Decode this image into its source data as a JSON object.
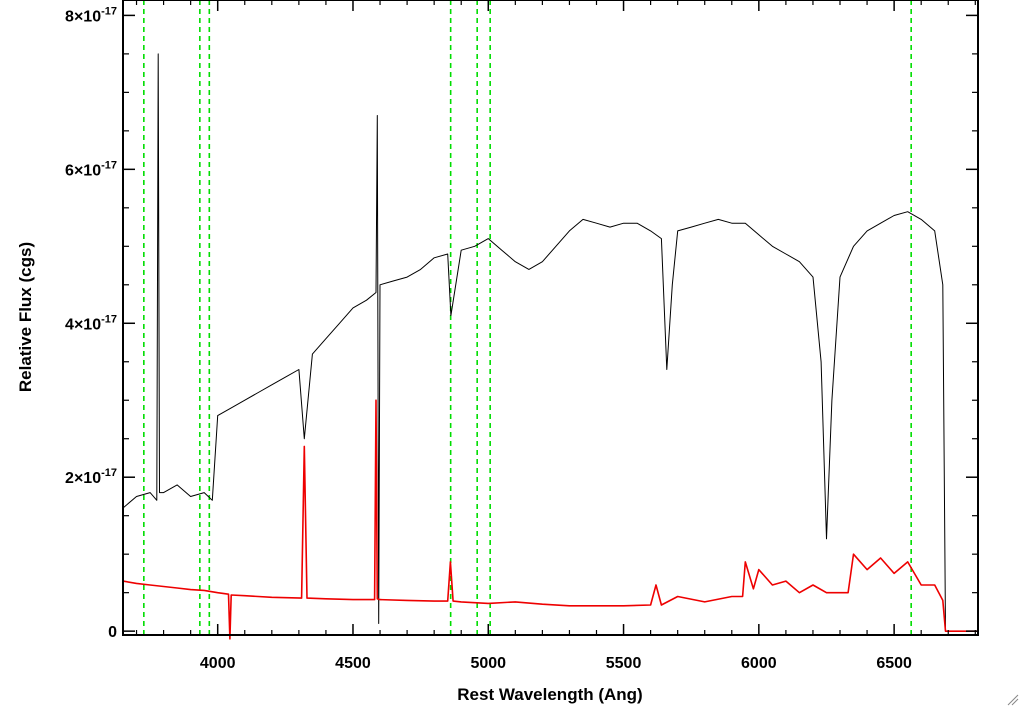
{
  "chart_data": {
    "type": "line",
    "title": "",
    "xlabel": "Rest Wavelength (Ang)",
    "ylabel": "Relative Flux (cgs)",
    "xlim": [
      3650,
      6810
    ],
    "ylim": [
      -5e-19,
      8.2e-17
    ],
    "x_ticks": [
      {
        "value": 4000,
        "label": "4000"
      },
      {
        "value": 4500,
        "label": "4500"
      },
      {
        "value": 5000,
        "label": "5000"
      },
      {
        "value": 5500,
        "label": "5500"
      },
      {
        "value": 6000,
        "label": "6000"
      },
      {
        "value": 6500,
        "label": "6500"
      }
    ],
    "y_ticks": [
      {
        "value": 0,
        "mant": "0",
        "exp": ""
      },
      {
        "value": 2e-17,
        "mant": "2×10",
        "exp": "-17"
      },
      {
        "value": 4e-17,
        "mant": "4×10",
        "exp": "-17"
      },
      {
        "value": 6e-17,
        "mant": "6×10",
        "exp": "-17"
      },
      {
        "value": 8e-17,
        "mant": "8×10",
        "exp": "-17"
      }
    ],
    "vlines": {
      "style": "dashed",
      "color": "#00dd00",
      "x": [
        3727,
        3934,
        3969,
        4861,
        4959,
        5007,
        6563
      ]
    },
    "series": [
      {
        "color": "#000000",
        "x": [
          3650,
          3700,
          3750,
          3775,
          3780,
          3785,
          3800,
          3850,
          3900,
          3950,
          3980,
          4000,
          4050,
          4100,
          4150,
          4200,
          4250,
          4300,
          4320,
          4350,
          4400,
          4450,
          4500,
          4550,
          4585,
          4590,
          4595,
          4600,
          4650,
          4700,
          4750,
          4800,
          4850,
          4862,
          4900,
          4950,
          5000,
          5050,
          5100,
          5150,
          5200,
          5250,
          5300,
          5350,
          5400,
          5450,
          5500,
          5550,
          5600,
          5640,
          5660,
          5680,
          5700,
          5750,
          5800,
          5850,
          5900,
          5950,
          6000,
          6050,
          6100,
          6150,
          6200,
          6230,
          6250,
          6270,
          6300,
          6350,
          6400,
          6450,
          6500,
          6550,
          6600,
          6650,
          6680,
          6690,
          6700,
          6810
        ],
        "y": [
          1.6e-17,
          1.75e-17,
          1.8e-17,
          1.7e-17,
          7.5e-17,
          1.8e-17,
          1.8e-17,
          1.9e-17,
          1.75e-17,
          1.8e-17,
          1.7e-17,
          2.8e-17,
          2.9e-17,
          3e-17,
          3.1e-17,
          3.2e-17,
          3.3e-17,
          3.4e-17,
          2.5e-17,
          3.6e-17,
          3.8e-17,
          4e-17,
          4.2e-17,
          4.3e-17,
          4.4e-17,
          6.7e-17,
          1e-18,
          4.5e-17,
          4.55e-17,
          4.6e-17,
          4.7e-17,
          4.85e-17,
          4.9e-17,
          4.1e-17,
          4.95e-17,
          5e-17,
          5.1e-17,
          4.95e-17,
          4.8e-17,
          4.7e-17,
          4.8e-17,
          5e-17,
          5.2e-17,
          5.35e-17,
          5.3e-17,
          5.25e-17,
          5.3e-17,
          5.3e-17,
          5.2e-17,
          5.1e-17,
          3.4e-17,
          4.5e-17,
          5.2e-17,
          5.25e-17,
          5.3e-17,
          5.35e-17,
          5.3e-17,
          5.3e-17,
          5.15e-17,
          5e-17,
          4.9e-17,
          4.8e-17,
          4.6e-17,
          3.5e-17,
          1.2e-17,
          3e-17,
          4.6e-17,
          5e-17,
          5.2e-17,
          5.3e-17,
          5.4e-17,
          5.45e-17,
          5.35e-17,
          5.2e-17,
          4.5e-17,
          0.0,
          0.0,
          0.0
        ]
      },
      {
        "color": "#ee0000",
        "x": [
          3650,
          3700,
          3750,
          3800,
          3850,
          3900,
          3950,
          4000,
          4040,
          4045,
          4050,
          4100,
          4200,
          4310,
          4320,
          4330,
          4400,
          4500,
          4580,
          4585,
          4590,
          4600,
          4700,
          4800,
          4850,
          4860,
          4870,
          4900,
          4950,
          5000,
          5100,
          5200,
          5300,
          5400,
          5500,
          5600,
          5620,
          5640,
          5700,
          5800,
          5900,
          5940,
          5950,
          5980,
          6000,
          6050,
          6100,
          6150,
          6200,
          6250,
          6300,
          6330,
          6350,
          6400,
          6450,
          6500,
          6550,
          6600,
          6650,
          6680,
          6690,
          6700,
          6810
        ],
        "y": [
          6.5e-18,
          6.2e-18,
          6e-18,
          5.8e-18,
          5.6e-18,
          5.4e-18,
          5.3e-18,
          5e-18,
          4.8e-18,
          -1e-18,
          4.7e-18,
          4.6e-18,
          4.4e-18,
          4.3e-18,
          2.4e-17,
          4.3e-18,
          4.2e-18,
          4.1e-18,
          4.1e-18,
          3e-17,
          4.2e-18,
          4.1e-18,
          4e-18,
          3.9e-18,
          3.9e-18,
          9e-18,
          3.9e-18,
          3.8e-18,
          3.7e-18,
          3.6e-18,
          3.8e-18,
          3.5e-18,
          3.3e-18,
          3.3e-18,
          3.3e-18,
          3.4e-18,
          6e-18,
          3.4e-18,
          4.5e-18,
          3.8e-18,
          4.5e-18,
          4.5e-18,
          9e-18,
          5.5e-18,
          8e-18,
          6e-18,
          6.5e-18,
          5e-18,
          6e-18,
          5e-18,
          5e-18,
          5e-18,
          1e-17,
          8e-18,
          9.5e-18,
          7.5e-18,
          9e-18,
          6e-18,
          6e-18,
          4e-18,
          0.0,
          0.0,
          0.0
        ]
      }
    ],
    "grid": false,
    "legend": "none"
  },
  "icons": {
    "resize_grip": "resize-grip-icon"
  }
}
